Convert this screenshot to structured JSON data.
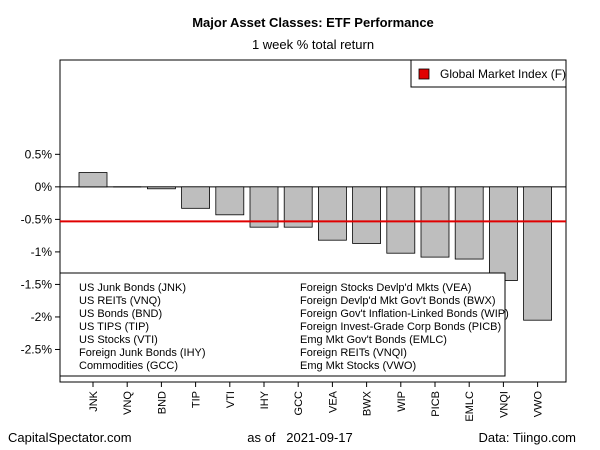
{
  "chart_data": {
    "type": "bar",
    "title": "Major Asset Classes: ETF Performance",
    "subtitle": "1 week % total return",
    "categories": [
      "JNK",
      "VNQ",
      "BND",
      "TIP",
      "VTI",
      "IHY",
      "GCC",
      "VEA",
      "BWX",
      "WIP",
      "PICB",
      "EMLC",
      "VNQI",
      "VWO"
    ],
    "values": [
      0.22,
      0.0,
      -0.03,
      -0.33,
      -0.43,
      -0.62,
      -0.62,
      -0.82,
      -0.87,
      -1.02,
      -1.08,
      -1.11,
      -1.44,
      -2.05
    ],
    "reference_line": {
      "name": "Global Market Index (F)",
      "value": -0.53,
      "color": "#e00000"
    },
    "ylim": [
      -3.0,
      1.95
    ],
    "yticks": [
      0.5,
      0,
      -0.5,
      -1,
      -1.5,
      -2,
      -2.5
    ],
    "ytick_labels": [
      "0.5%",
      "0%",
      "-0.5%",
      "-1%",
      "-1.5%",
      "-2%",
      "-2.5%"
    ],
    "bar_color": "#bebebe",
    "legend_placement": "top-right",
    "grid": false,
    "ticker_key_left": [
      "US Junk Bonds (JNK)",
      "US REITs (VNQ)",
      "US Bonds (BND)",
      "US TIPS (TIP)",
      "US Stocks (VTI)",
      "Foreign Junk Bonds (IHY)",
      "Commodities (GCC)"
    ],
    "ticker_key_right": [
      "Foreign Stocks Devlp'd Mkts (VEA)",
      "Foreign Devlp'd Mkt Gov't Bonds (BWX)",
      "Foreign Gov't Inflation-Linked Bonds (WIP)",
      "Foreign Invest-Grade Corp Bonds (PICB)",
      "Emg Mkt Gov't Bonds (EMLC)",
      "Foreign REITs (VNQI)",
      "Emg Mkt Stocks (VWO)"
    ]
  },
  "footer": {
    "left": "CapitalSpectator.com",
    "center": "as of   2021-09-17",
    "right": "Data: Tiingo.com"
  }
}
